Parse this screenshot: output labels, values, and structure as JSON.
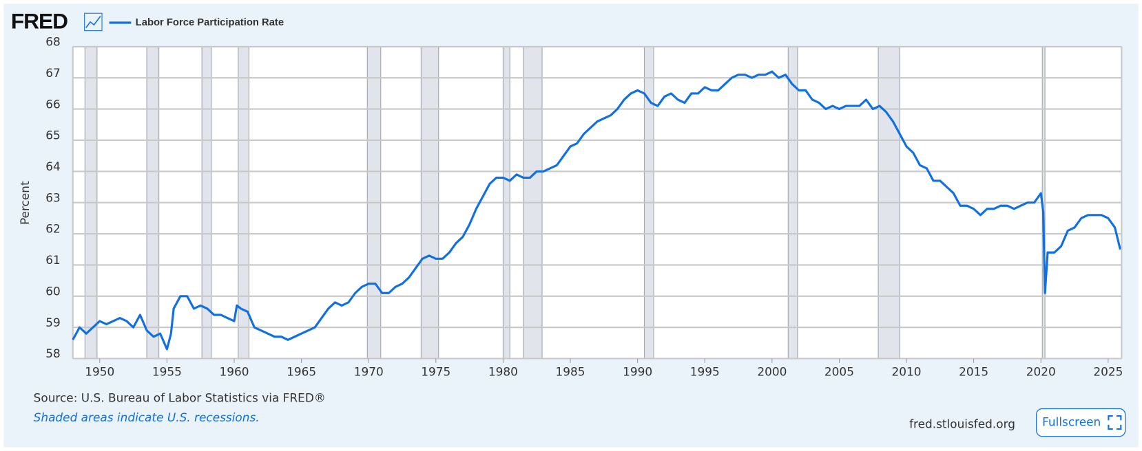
{
  "header": {
    "logo": "FRED"
  },
  "footer": {
    "source": "Source: U.S. Bureau of Labor Statistics via FRED®",
    "note": "Shaded areas indicate U.S. recessions.",
    "site": "fred.stlouisfed.org",
    "button": "Fullscreen"
  },
  "chart_data": {
    "type": "line",
    "y_label": "Percent",
    "xlim": [
      1948,
      2026
    ],
    "xticks": [
      1950,
      1955,
      1960,
      1965,
      1970,
      1975,
      1980,
      1985,
      1990,
      1995,
      2000,
      2005,
      2010,
      2015,
      2020,
      2025
    ],
    "ylim": [
      58,
      68
    ],
    "yticks": [
      58,
      59,
      60,
      61,
      62,
      63,
      64,
      65,
      66,
      67,
      68
    ],
    "grid": true,
    "recessions": [
      [
        1948.9,
        1949.8
      ],
      [
        1953.5,
        1954.4
      ],
      [
        1957.6,
        1958.3
      ],
      [
        1960.3,
        1961.1
      ],
      [
        1969.9,
        1970.9
      ],
      [
        1973.9,
        1975.2
      ],
      [
        1980.0,
        1980.5
      ],
      [
        1981.5,
        1982.9
      ],
      [
        1990.5,
        1991.2
      ],
      [
        2001.2,
        2001.9
      ],
      [
        2007.9,
        2009.5
      ],
      [
        2020.1,
        2020.3
      ]
    ],
    "x": [
      1948.0,
      1948.5,
      1949,
      1949.5,
      1950,
      1950.5,
      1951,
      1951.5,
      1952,
      1952.5,
      1953,
      1953.5,
      1954,
      1954.5,
      1955,
      1955.3,
      1955.5,
      1956,
      1956.5,
      1957,
      1957.5,
      1958,
      1958.5,
      1959,
      1959.5,
      1960,
      1960.2,
      1960.5,
      1961,
      1961.5,
      1962,
      1962.5,
      1963,
      1963.5,
      1964,
      1964.5,
      1965,
      1965.5,
      1966,
      1966.5,
      1967,
      1967.5,
      1968,
      1968.5,
      1969,
      1969.5,
      1970,
      1970.5,
      1971,
      1971.5,
      1972,
      1972.5,
      1973,
      1973.5,
      1974,
      1974.5,
      1975,
      1975.5,
      1976,
      1976.5,
      1977,
      1977.5,
      1978,
      1978.5,
      1979,
      1979.5,
      1980,
      1980.5,
      1981,
      1981.5,
      1982,
      1982.5,
      1983,
      1983.5,
      1984,
      1984.5,
      1985,
      1985.5,
      1986,
      1986.5,
      1987,
      1987.5,
      1988,
      1988.5,
      1989,
      1989.5,
      1990,
      1990.5,
      1991,
      1991.5,
      1992,
      1992.5,
      1993,
      1993.5,
      1994,
      1994.5,
      1995,
      1995.5,
      1996,
      1996.5,
      1997,
      1997.5,
      1998,
      1998.5,
      1999,
      1999.5,
      2000,
      2000.5,
      2001,
      2001.5,
      2002,
      2002.5,
      2003,
      2003.5,
      2004,
      2004.5,
      2005,
      2005.5,
      2006,
      2006.5,
      2007,
      2007.5,
      2008,
      2008.5,
      2009,
      2009.5,
      2010,
      2010.5,
      2011,
      2011.5,
      2012,
      2012.5,
      2013,
      2013.5,
      2014,
      2014.5,
      2015,
      2015.5,
      2016,
      2016.5,
      2017,
      2017.5,
      2018,
      2018.5,
      2019,
      2019.5,
      2020,
      2020.17,
      2020.3,
      2020.5,
      2021,
      2021.5,
      2022,
      2022.5,
      2023,
      2023.5,
      2024,
      2024.5,
      2025,
      2025.5,
      2025.9
    ],
    "series": [
      {
        "name": "Labor Force Participation Rate",
        "color": "#1170e1",
        "values": [
          58.6,
          59.0,
          58.8,
          59.0,
          59.2,
          59.1,
          59.2,
          59.3,
          59.2,
          59.0,
          59.4,
          58.9,
          58.7,
          58.8,
          58.3,
          58.8,
          59.6,
          60.0,
          60.0,
          59.6,
          59.7,
          59.6,
          59.4,
          59.4,
          59.3,
          59.2,
          59.7,
          59.6,
          59.5,
          59.0,
          58.9,
          58.8,
          58.7,
          58.7,
          58.6,
          58.7,
          58.8,
          58.9,
          59.0,
          59.3,
          59.6,
          59.8,
          59.7,
          59.8,
          60.1,
          60.3,
          60.4,
          60.4,
          60.1,
          60.1,
          60.3,
          60.4,
          60.6,
          60.9,
          61.2,
          61.3,
          61.2,
          61.2,
          61.4,
          61.7,
          61.9,
          62.3,
          62.8,
          63.2,
          63.6,
          63.8,
          63.8,
          63.7,
          63.9,
          63.8,
          63.8,
          64.0,
          64.0,
          64.1,
          64.2,
          64.5,
          64.8,
          64.9,
          65.2,
          65.4,
          65.6,
          65.7,
          65.8,
          66.0,
          66.3,
          66.5,
          66.6,
          66.5,
          66.2,
          66.1,
          66.4,
          66.5,
          66.3,
          66.2,
          66.5,
          66.5,
          66.7,
          66.6,
          66.6,
          66.8,
          67.0,
          67.1,
          67.1,
          67.0,
          67.1,
          67.1,
          67.2,
          67.0,
          67.1,
          66.8,
          66.6,
          66.6,
          66.3,
          66.2,
          66.0,
          66.1,
          66.0,
          66.1,
          66.1,
          66.1,
          66.3,
          66.0,
          66.1,
          65.9,
          65.6,
          65.2,
          64.8,
          64.6,
          64.2,
          64.1,
          63.7,
          63.7,
          63.5,
          63.3,
          62.9,
          62.9,
          62.8,
          62.6,
          62.8,
          62.8,
          62.9,
          62.9,
          62.8,
          62.9,
          63.0,
          63.0,
          63.3,
          62.7,
          60.1,
          61.4,
          61.4,
          61.6,
          62.1,
          62.2,
          62.5,
          62.6,
          62.6,
          62.6,
          62.5,
          62.2,
          61.5
        ]
      }
    ]
  }
}
